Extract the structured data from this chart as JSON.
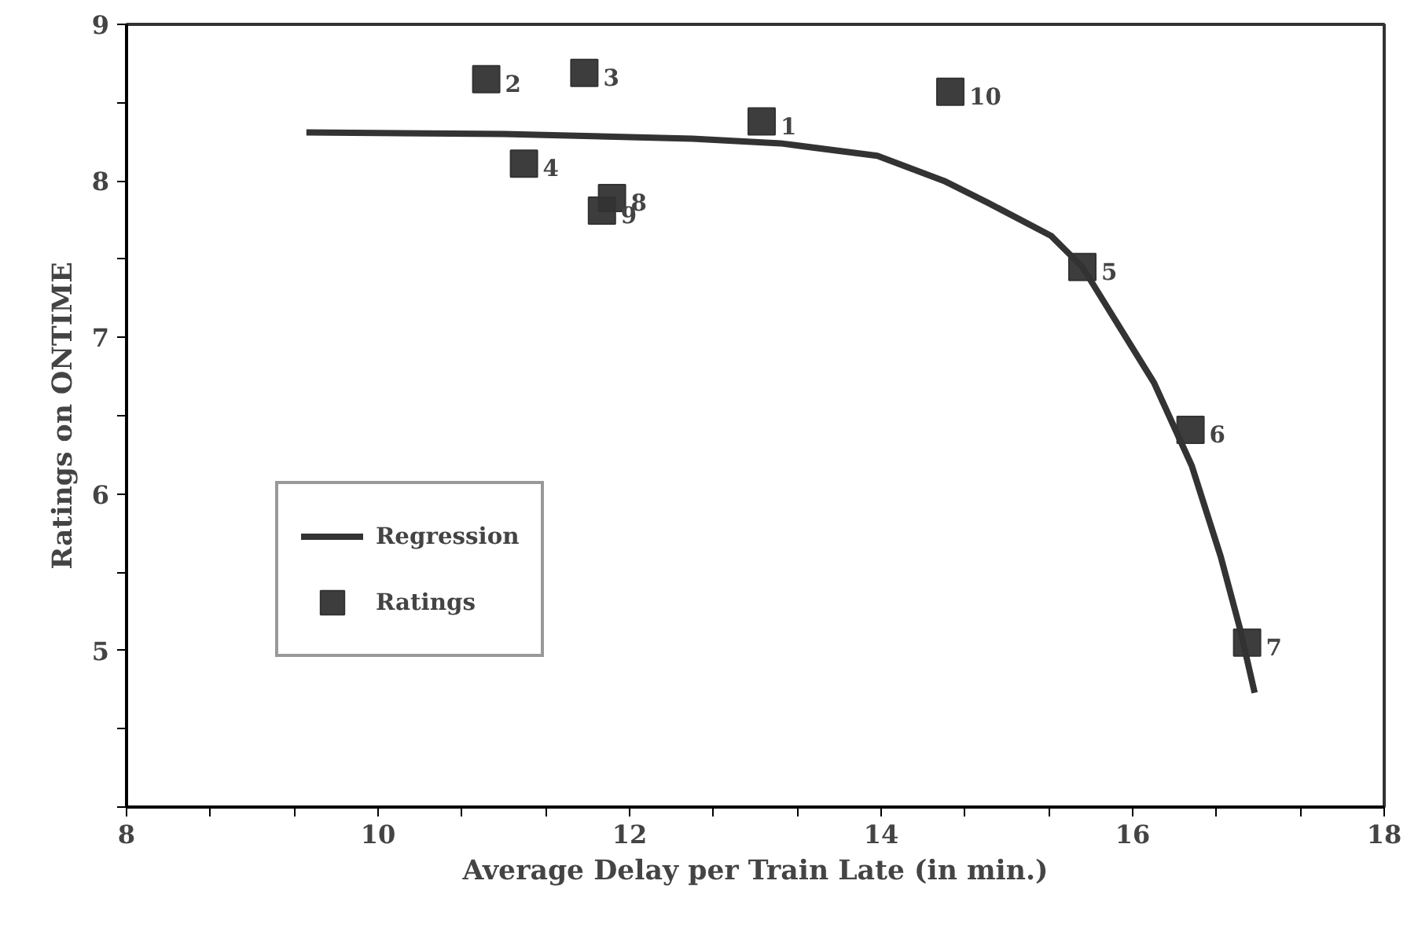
{
  "chart_data": {
    "type": "scatter",
    "xlabel": "Average Delay per Train Late (in min.)",
    "ylabel": "Ratings on ONTIME",
    "xlim": [
      8,
      18
    ],
    "ylim": [
      4,
      9
    ],
    "xticks": [
      8,
      {
        "value": 8.667,
        "label": null
      },
      {
        "value": 9.333,
        "label": null
      },
      10,
      {
        "value": 10.667,
        "label": null
      },
      {
        "value": 11.333,
        "label": null
      },
      12,
      {
        "value": 12.667,
        "label": null
      },
      {
        "value": 13.333,
        "label": null
      },
      14,
      {
        "value": 14.667,
        "label": null
      },
      {
        "value": 15.333,
        "label": null
      },
      16,
      {
        "value": 16.667,
        "label": null
      },
      {
        "value": 17.333,
        "label": null
      },
      18
    ],
    "yticks": [
      {
        "value": 4,
        "label": null
      },
      {
        "value": 4.5,
        "label": null
      },
      5,
      {
        "value": 5.5,
        "label": null
      },
      6,
      {
        "value": 6.5,
        "label": null
      },
      7,
      {
        "value": 7.5,
        "label": null
      },
      8,
      {
        "value": 8.5,
        "label": null
      },
      9
    ],
    "grid": false,
    "legend": "bottom left",
    "series": [
      {
        "name": "Regression",
        "type": "line",
        "color": "#333333",
        "line_style": "solid",
        "x": [
          9.43,
          11.0,
          12.5,
          13.2,
          13.97,
          14.5,
          14.85,
          15.35,
          15.6,
          16.17,
          16.47,
          16.7,
          16.85,
          16.97
        ],
        "values": [
          8.31,
          8.3,
          8.27,
          8.24,
          8.16,
          8.0,
          7.86,
          7.65,
          7.45,
          6.71,
          6.18,
          5.6,
          5.15,
          4.73
        ]
      },
      {
        "name": "Ratings",
        "marker": "square",
        "color": "#333333",
        "x": [
          13.05,
          10.86,
          11.64,
          11.16,
          15.6,
          16.46,
          16.91,
          11.86,
          11.78,
          14.55
        ],
        "values": [
          8.38,
          8.65,
          8.69,
          8.11,
          7.45,
          6.41,
          5.05,
          7.89,
          7.81,
          8.57
        ]
      }
    ],
    "annotations": [
      {
        "text": "1",
        "x": 13.05,
        "y": 8.38
      },
      {
        "text": "2",
        "x": 10.86,
        "y": 8.65
      },
      {
        "text": "3",
        "x": 11.64,
        "y": 8.69
      },
      {
        "text": "4",
        "x": 11.16,
        "y": 8.11
      },
      {
        "text": "5",
        "x": 15.6,
        "y": 7.45
      },
      {
        "text": "6",
        "x": 16.46,
        "y": 6.41
      },
      {
        "text": "7",
        "x": 16.91,
        "y": 5.05
      },
      {
        "text": "8",
        "x": 11.86,
        "y": 7.89
      },
      {
        "text": "9",
        "x": 11.78,
        "y": 7.81
      },
      {
        "text": "10",
        "x": 14.55,
        "y": 8.57
      }
    ]
  }
}
